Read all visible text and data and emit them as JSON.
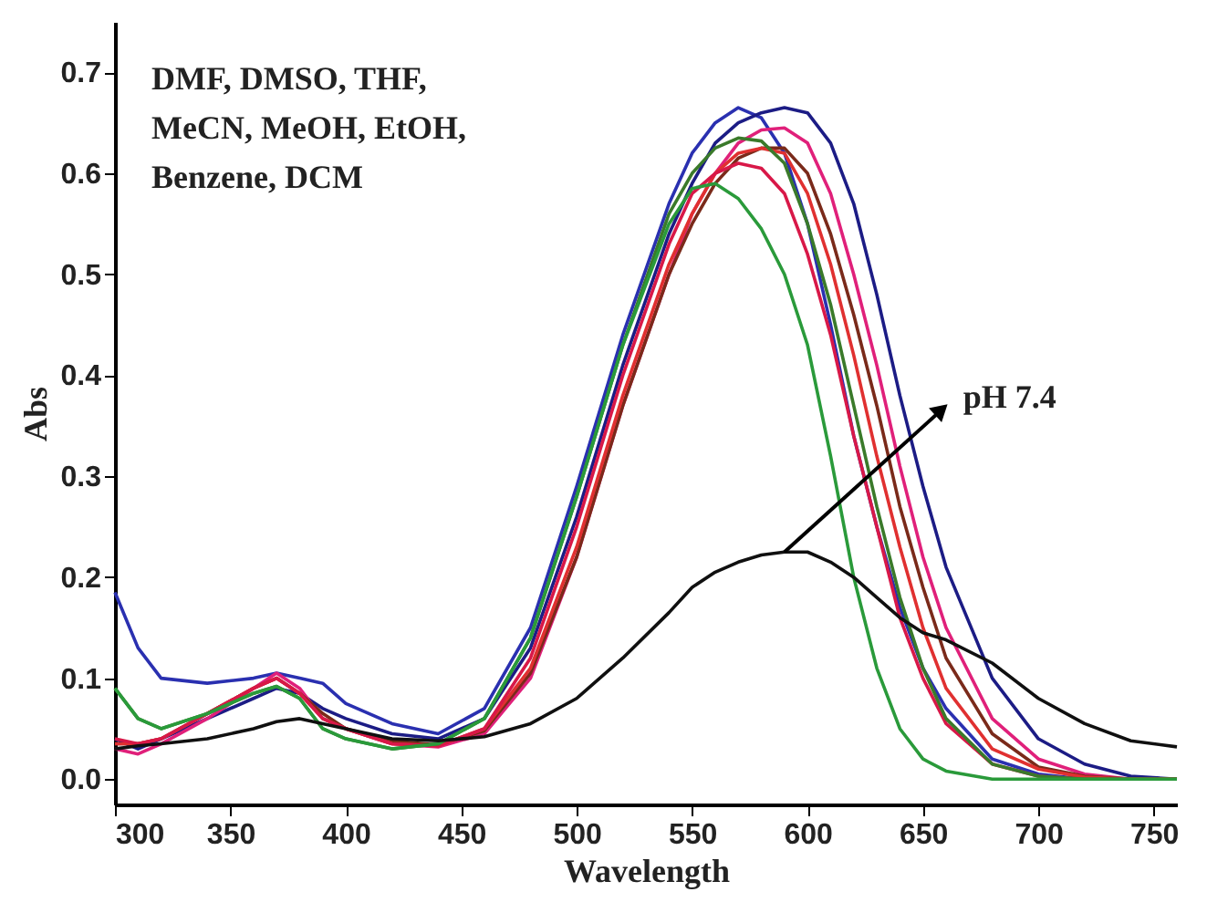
{
  "chart_data": {
    "type": "line",
    "xlabel": "Wavelength",
    "ylabel": "Abs",
    "x": [
      300,
      310,
      320,
      340,
      360,
      370,
      380,
      390,
      400,
      420,
      440,
      460,
      480,
      500,
      520,
      540,
      550,
      560,
      570,
      580,
      590,
      600,
      610,
      620,
      630,
      640,
      650,
      660,
      680,
      700,
      720,
      740,
      760
    ],
    "series": [
      {
        "color": "#2a30b0",
        "values": [
          0.185,
          0.13,
          0.1,
          0.095,
          0.1,
          0.105,
          0.1,
          0.095,
          0.075,
          0.055,
          0.045,
          0.07,
          0.15,
          0.29,
          0.44,
          0.57,
          0.62,
          0.65,
          0.665,
          0.655,
          0.62,
          0.55,
          0.45,
          0.34,
          0.25,
          0.17,
          0.11,
          0.07,
          0.02,
          0.005,
          0.0,
          0.0,
          0.0
        ]
      },
      {
        "color": "#1c1c85",
        "values": [
          0.04,
          0.03,
          0.04,
          0.06,
          0.08,
          0.09,
          0.085,
          0.07,
          0.06,
          0.045,
          0.04,
          0.06,
          0.13,
          0.26,
          0.41,
          0.54,
          0.59,
          0.63,
          0.65,
          0.66,
          0.665,
          0.66,
          0.63,
          0.57,
          0.48,
          0.38,
          0.29,
          0.21,
          0.1,
          0.04,
          0.015,
          0.003,
          0.0
        ]
      },
      {
        "color": "#e0207a",
        "values": [
          0.03,
          0.025,
          0.035,
          0.06,
          0.09,
          0.105,
          0.09,
          0.06,
          0.05,
          0.035,
          0.032,
          0.045,
          0.1,
          0.22,
          0.37,
          0.5,
          0.56,
          0.6,
          0.63,
          0.643,
          0.645,
          0.63,
          0.58,
          0.5,
          0.41,
          0.31,
          0.22,
          0.15,
          0.06,
          0.02,
          0.005,
          0.0,
          0.0
        ]
      },
      {
        "color": "#7a2a1a",
        "values": [
          0.035,
          0.035,
          0.04,
          0.065,
          0.09,
          0.1,
          0.085,
          0.065,
          0.05,
          0.038,
          0.034,
          0.048,
          0.105,
          0.22,
          0.37,
          0.5,
          0.55,
          0.59,
          0.615,
          0.625,
          0.625,
          0.6,
          0.54,
          0.46,
          0.37,
          0.27,
          0.19,
          0.12,
          0.045,
          0.012,
          0.003,
          0.0,
          0.0
        ]
      },
      {
        "color": "#e03030",
        "values": [
          0.035,
          0.035,
          0.04,
          0.065,
          0.09,
          0.1,
          0.085,
          0.06,
          0.05,
          0.035,
          0.033,
          0.05,
          0.11,
          0.23,
          0.38,
          0.51,
          0.56,
          0.6,
          0.62,
          0.625,
          0.62,
          0.58,
          0.51,
          0.42,
          0.32,
          0.23,
          0.15,
          0.09,
          0.03,
          0.01,
          0.002,
          0.0,
          0.0
        ]
      },
      {
        "color": "#d81848",
        "values": [
          0.04,
          0.035,
          0.04,
          0.065,
          0.09,
          0.1,
          0.085,
          0.06,
          0.05,
          0.035,
          0.033,
          0.05,
          0.12,
          0.25,
          0.4,
          0.53,
          0.58,
          0.6,
          0.61,
          0.605,
          0.58,
          0.52,
          0.44,
          0.34,
          0.25,
          0.16,
          0.1,
          0.055,
          0.015,
          0.003,
          0.0,
          0.0,
          0.0
        ]
      },
      {
        "color": "#3a7a2a",
        "values": [
          0.09,
          0.06,
          0.05,
          0.065,
          0.085,
          0.092,
          0.08,
          0.05,
          0.04,
          0.03,
          0.035,
          0.06,
          0.14,
          0.28,
          0.43,
          0.56,
          0.6,
          0.625,
          0.635,
          0.632,
          0.61,
          0.55,
          0.47,
          0.37,
          0.27,
          0.18,
          0.11,
          0.06,
          0.015,
          0.003,
          0.0,
          0.0,
          0.0
        ]
      },
      {
        "color": "#2a9a3a",
        "values": [
          0.09,
          0.06,
          0.05,
          0.065,
          0.085,
          0.092,
          0.08,
          0.05,
          0.04,
          0.03,
          0.035,
          0.06,
          0.14,
          0.28,
          0.43,
          0.55,
          0.585,
          0.59,
          0.575,
          0.545,
          0.5,
          0.43,
          0.32,
          0.2,
          0.11,
          0.05,
          0.02,
          0.008,
          0.0,
          0.0,
          0.0,
          0.0,
          0.0
        ]
      },
      {
        "color": "#101010",
        "values": [
          0.03,
          0.033,
          0.035,
          0.04,
          0.05,
          0.057,
          0.06,
          0.055,
          0.05,
          0.04,
          0.038,
          0.042,
          0.055,
          0.08,
          0.12,
          0.165,
          0.19,
          0.205,
          0.215,
          0.222,
          0.225,
          0.225,
          0.215,
          0.2,
          0.18,
          0.16,
          0.145,
          0.138,
          0.115,
          0.08,
          0.055,
          0.038,
          0.032
        ]
      }
    ],
    "xlim": [
      300,
      760
    ],
    "xticks": [
      300,
      350,
      400,
      450,
      500,
      550,
      600,
      650,
      700,
      750
    ],
    "ylim": [
      -0.025,
      0.75
    ],
    "yticks": [
      {
        "value": 0,
        "label": "0.0"
      },
      0.1,
      0.2,
      0.3,
      0.4,
      0.5,
      0.6,
      0.7
    ],
    "annotations": [
      "DMF, DMSO, THF,",
      "MeCN, MeOH, EtOH,",
      "Benzene, DCM",
      {
        "text": "pH 7.4",
        "x": 590,
        "y": 0.225
      }
    ],
    "grid": false,
    "marker": "none",
    "line_style": "solid"
  }
}
